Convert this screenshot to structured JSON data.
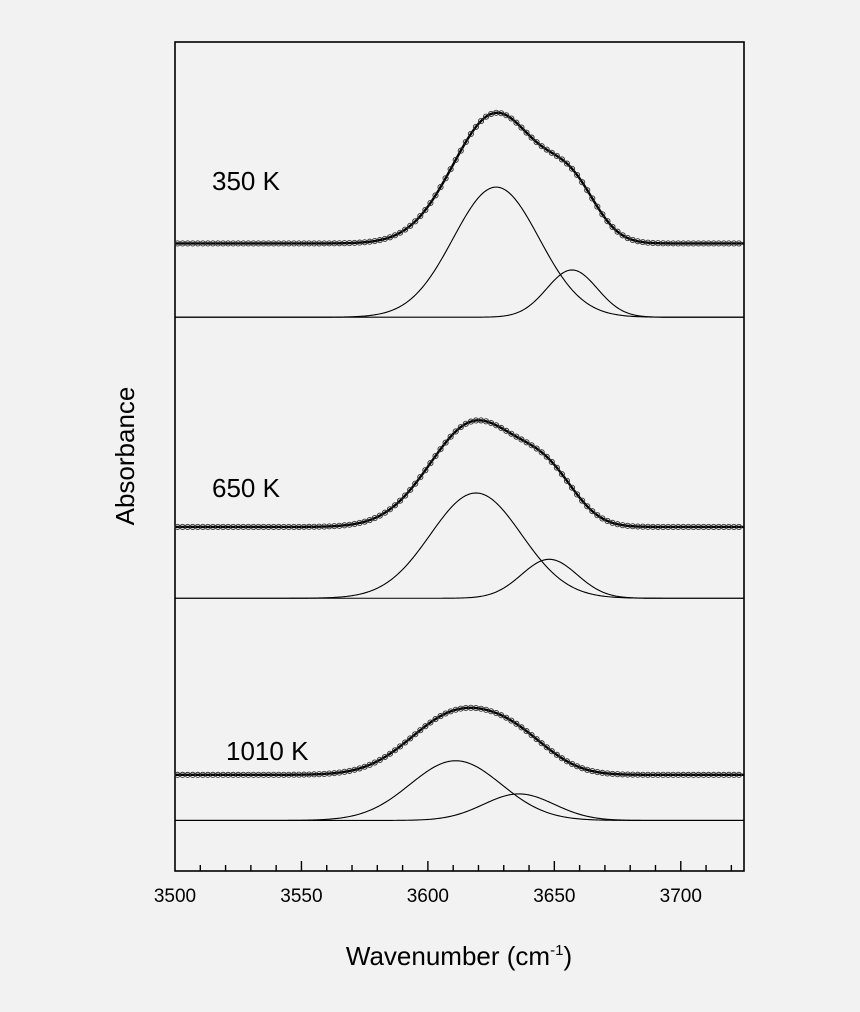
{
  "chart_data": {
    "type": "line",
    "xlabel": "Wavenumber (cm",
    "xlabel_sup": "-1",
    "xlabel_close": ")",
    "ylabel": "Absorbance",
    "xlim": [
      3500,
      3725
    ],
    "ylim": [
      0,
      1
    ],
    "x_ticks": [
      3500,
      3550,
      3600,
      3650,
      3700
    ],
    "y_ticks_shown": false,
    "grid": false,
    "legend": "none",
    "curve_colors": {
      "data": "#333333",
      "fit": "#000000",
      "components": "#000000"
    },
    "spectra": [
      {
        "label": "350 K",
        "baseline_total": 0.757,
        "baseline_components": 0.668,
        "components": [
          {
            "center": 3627,
            "sigma": 17,
            "amplitude": 0.157
          },
          {
            "center": 3657,
            "sigma": 10,
            "amplitude": 0.057
          }
        ],
        "fit": [
          [
            3500,
            0.757
          ],
          [
            3550,
            0.76
          ],
          [
            3570,
            0.766
          ],
          [
            3580,
            0.773
          ],
          [
            3590,
            0.786
          ],
          [
            3600,
            0.808
          ],
          [
            3610,
            0.838
          ],
          [
            3617,
            0.861
          ],
          [
            3622,
            0.875
          ],
          [
            3627,
            0.883
          ],
          [
            3632,
            0.881
          ],
          [
            3637,
            0.872
          ],
          [
            3642,
            0.864
          ],
          [
            3647,
            0.855
          ],
          [
            3652,
            0.843
          ],
          [
            3657,
            0.827
          ],
          [
            3662,
            0.808
          ],
          [
            3667,
            0.791
          ],
          [
            3672,
            0.776
          ],
          [
            3677,
            0.766
          ],
          [
            3685,
            0.76
          ],
          [
            3700,
            0.758
          ],
          [
            3725,
            0.757
          ]
        ],
        "component_curves": [
          [
            [
              3500,
              0.668
            ],
            [
              3560,
              0.67
            ],
            [
              3575,
              0.673
            ],
            [
              3585,
              0.68
            ],
            [
              3595,
              0.693
            ],
            [
              3605,
              0.712
            ],
            [
              3613,
              0.73
            ],
            [
              3620,
              0.746
            ],
            [
              3624,
              0.752
            ],
            [
              3627,
              0.824
            ],
            [
              3630,
              0.822
            ],
            [
              3635,
              0.812
            ],
            [
              3640,
              0.795
            ],
            [
              3645,
              0.773
            ],
            [
              3650,
              0.749
            ],
            [
              3657,
              0.716
            ],
            [
              3665,
              0.692
            ],
            [
              3672,
              0.679
            ],
            [
              3680,
              0.671
            ],
            [
              3700,
              0.668
            ],
            [
              3725,
              0.668
            ]
          ],
          [
            [
              3500,
              0.668
            ],
            [
              3630,
              0.668
            ],
            [
              3637,
              0.672
            ],
            [
              3643,
              0.683
            ],
            [
              3648,
              0.698
            ],
            [
              3652,
              0.712
            ],
            [
              3657,
              0.725
            ],
            [
              3662,
              0.717
            ],
            [
              3667,
              0.699
            ],
            [
              3672,
              0.683
            ],
            [
              3678,
              0.671
            ],
            [
              3690,
              0.668
            ],
            [
              3725,
              0.668
            ]
          ]
        ]
      },
      {
        "label": "650 K",
        "baseline_total": 0.415,
        "baseline_components": 0.329,
        "components": [
          {
            "center": 3619,
            "sigma": 18,
            "amplitude": 0.127
          },
          {
            "center": 3648,
            "sigma": 11,
            "amplitude": 0.047
          }
        ],
        "fit": [
          [
            3500,
            0.415
          ],
          [
            3550,
            0.418
          ],
          [
            3570,
            0.426
          ],
          [
            3580,
            0.436
          ],
          [
            3590,
            0.452
          ],
          [
            3600,
            0.475
          ],
          [
            3608,
            0.499
          ],
          [
            3614,
            0.515
          ],
          [
            3619,
            0.524
          ],
          [
            3624,
            0.524
          ],
          [
            3629,
            0.518
          ],
          [
            3634,
            0.511
          ],
          [
            3639,
            0.503
          ],
          [
            3644,
            0.493
          ],
          [
            3649,
            0.48
          ],
          [
            3654,
            0.465
          ],
          [
            3659,
            0.45
          ],
          [
            3665,
            0.435
          ],
          [
            3672,
            0.424
          ],
          [
            3680,
            0.418
          ],
          [
            3700,
            0.416
          ],
          [
            3725,
            0.415
          ]
        ],
        "component_curves": [
          [
            [
              3500,
              0.329
            ],
            [
              3555,
              0.331
            ],
            [
              3570,
              0.336
            ],
            [
              3580,
              0.345
            ],
            [
              3590,
              0.36
            ],
            [
              3600,
              0.381
            ],
            [
              3610,
              0.411
            ],
            [
              3619,
              0.456
            ],
            [
              3625,
              0.452
            ],
            [
              3632,
              0.438
            ],
            [
              3640,
              0.413
            ],
            [
              3648,
              0.385
            ],
            [
              3655,
              0.366
            ],
            [
              3662,
              0.351
            ],
            [
              3670,
              0.339
            ],
            [
              3680,
              0.332
            ],
            [
              3700,
              0.329
            ],
            [
              3725,
              0.329
            ]
          ],
          [
            [
              3500,
              0.329
            ],
            [
              3620,
              0.33
            ],
            [
              3628,
              0.334
            ],
            [
              3635,
              0.346
            ],
            [
              3641,
              0.362
            ],
            [
              3648,
              0.376
            ],
            [
              3654,
              0.368
            ],
            [
              3660,
              0.352
            ],
            [
              3666,
              0.339
            ],
            [
              3674,
              0.331
            ],
            [
              3690,
              0.329
            ],
            [
              3725,
              0.329
            ]
          ]
        ]
      },
      {
        "label": "1010 K",
        "baseline_total": 0.116,
        "baseline_components": 0.061,
        "components": [
          {
            "center": 3611,
            "sigma": 18,
            "amplitude": 0.072
          },
          {
            "center": 3636,
            "sigma": 14,
            "amplitude": 0.032
          }
        ],
        "fit": [
          [
            3500,
            0.116
          ],
          [
            3550,
            0.119
          ],
          [
            3565,
            0.125
          ],
          [
            3575,
            0.133
          ],
          [
            3585,
            0.146
          ],
          [
            3595,
            0.161
          ],
          [
            3603,
            0.172
          ],
          [
            3610,
            0.179
          ],
          [
            3617,
            0.181
          ],
          [
            3624,
            0.179
          ],
          [
            3631,
            0.174
          ],
          [
            3638,
            0.166
          ],
          [
            3645,
            0.156
          ],
          [
            3652,
            0.145
          ],
          [
            3660,
            0.134
          ],
          [
            3668,
            0.126
          ],
          [
            3678,
            0.12
          ],
          [
            3690,
            0.117
          ],
          [
            3725,
            0.116
          ]
        ],
        "component_curves": [
          [
            [
              3500,
              0.061
            ],
            [
              3550,
              0.064
            ],
            [
              3565,
              0.07
            ],
            [
              3575,
              0.08
            ],
            [
              3585,
              0.095
            ],
            [
              3595,
              0.111
            ],
            [
              3603,
              0.124
            ],
            [
              3611,
              0.133
            ],
            [
              3618,
              0.129
            ],
            [
              3625,
              0.119
            ],
            [
              3633,
              0.104
            ],
            [
              3641,
              0.089
            ],
            [
              3650,
              0.076
            ],
            [
              3660,
              0.067
            ],
            [
              3672,
              0.062
            ],
            [
              3690,
              0.061
            ],
            [
              3725,
              0.061
            ]
          ],
          [
            [
              3500,
              0.061
            ],
            [
              3600,
              0.063
            ],
            [
              3610,
              0.068
            ],
            [
              3618,
              0.075
            ],
            [
              3626,
              0.084
            ],
            [
              3636,
              0.093
            ],
            [
              3645,
              0.088
            ],
            [
              3653,
              0.078
            ],
            [
              3661,
              0.069
            ],
            [
              3670,
              0.063
            ],
            [
              3685,
              0.061
            ],
            [
              3725,
              0.061
            ]
          ]
        ]
      }
    ]
  }
}
